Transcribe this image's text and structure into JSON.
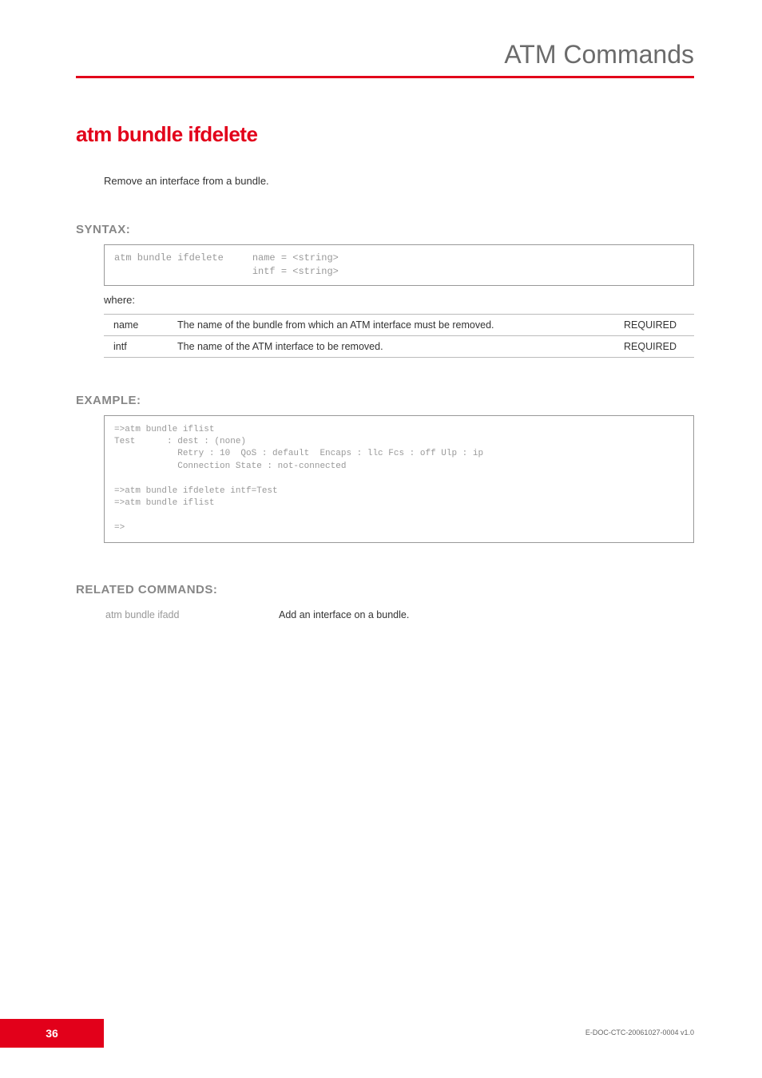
{
  "header": {
    "title": "ATM Commands"
  },
  "command": {
    "title": "atm bundle ifdelete",
    "description": "Remove an interface from a bundle."
  },
  "syntax": {
    "heading": "SYNTAX:",
    "content": "atm bundle ifdelete     name = <string>\n                        intf = <string>",
    "whereLabel": "where:",
    "params": [
      {
        "name": "name",
        "desc": "The name of the bundle from which an ATM interface must be removed.",
        "req": "REQUIRED"
      },
      {
        "name": "intf",
        "desc": "The name of the ATM interface to be removed.",
        "req": "REQUIRED"
      }
    ]
  },
  "example": {
    "heading": "EXAMPLE:",
    "content": "=>atm bundle iflist\nTest      : dest : (none)\n            Retry : 10  QoS : default  Encaps : llc Fcs : off Ulp : ip\n            Connection State : not-connected\n\n=>atm bundle ifdelete intf=Test\n=>atm bundle iflist\n\n=>"
  },
  "related": {
    "heading": "RELATED COMMANDS:",
    "items": [
      {
        "cmd": "atm bundle ifadd",
        "desc": "Add an interface on a bundle."
      }
    ]
  },
  "footer": {
    "pageNumber": "36",
    "docRef": "E-DOC-CTC-20061027-0004 v1.0"
  },
  "colors": {
    "accent": "#e2001a",
    "headerText": "#6b6b6b",
    "sectionHeading": "#878787",
    "bodyText": "#333333",
    "codeText": "#999999",
    "borderColor": "#999999",
    "tableBorder": "#bbbbbb"
  }
}
